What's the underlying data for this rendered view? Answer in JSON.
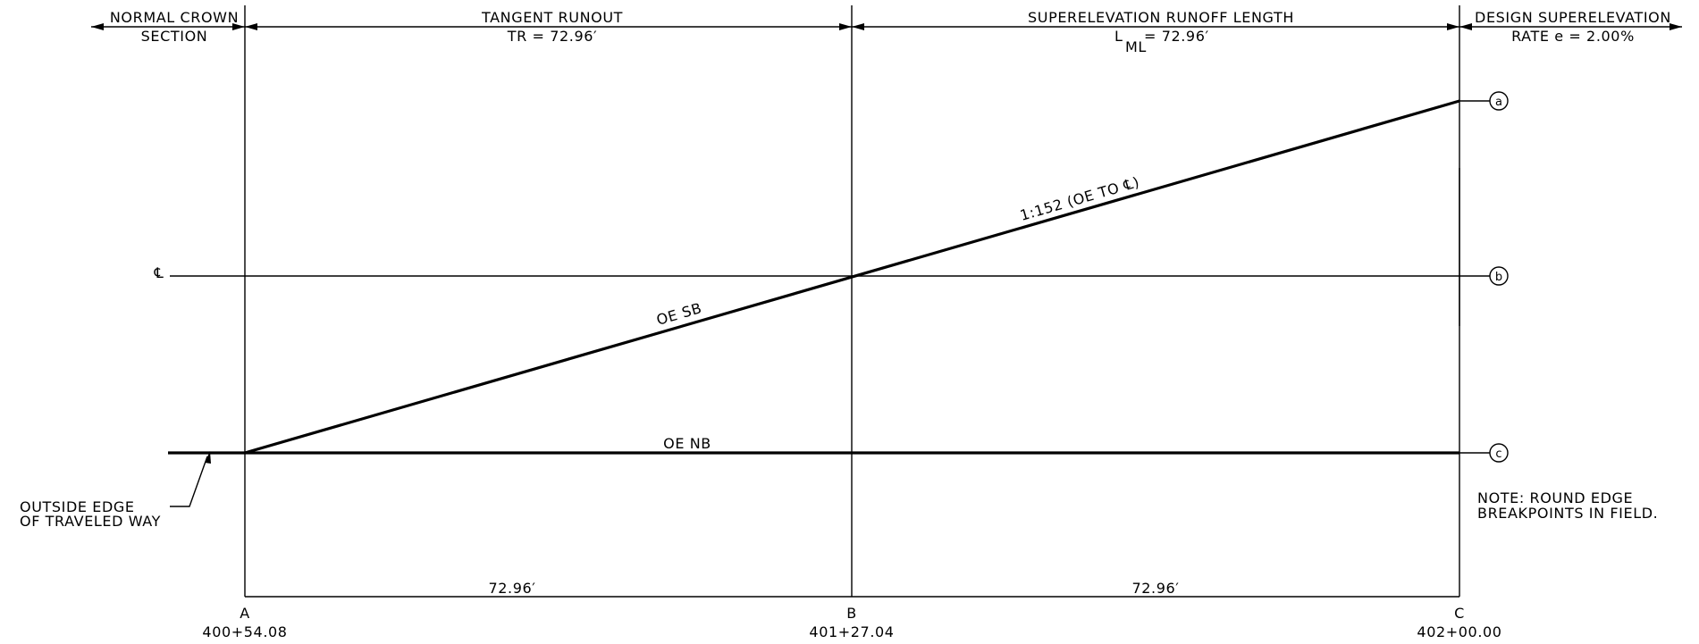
{
  "header": {
    "col1": {
      "line1": "NORMAL CROWN",
      "line2": "SECTION"
    },
    "col2": {
      "line1": "TANGENT RUNOUT",
      "line2": "TR = 72.96′"
    },
    "col3": {
      "line1": "SUPERELEVATION RUNOFF LENGTH",
      "lml_L": "L",
      "lml_sub": "ML",
      "lml_rest": "= 72.96′"
    },
    "col4": {
      "line1": "DESIGN SUPERELEVATION",
      "line2": "RATE e = 2.00%"
    }
  },
  "lines": {
    "centerline_symbol": "℄",
    "slope_label": "1:152 (OE TO ℄)",
    "oe_sb": "OE SB",
    "oe_nb": "OE NB"
  },
  "markers": [
    "a",
    "b",
    "c"
  ],
  "callout": {
    "line1": "OUTSIDE EDGE",
    "line2": "OF TRAVELED WAY"
  },
  "note": {
    "line1": "NOTE: ROUND EDGE",
    "line2": "BREAKPOINTS IN FIELD."
  },
  "dimensions": [
    "72.96′",
    "72.96′"
  ],
  "stations": [
    {
      "letter": "A",
      "station": "400+54.08"
    },
    {
      "letter": "B",
      "station": "401+27.04"
    },
    {
      "letter": "C",
      "station": "402+00.00"
    }
  ]
}
